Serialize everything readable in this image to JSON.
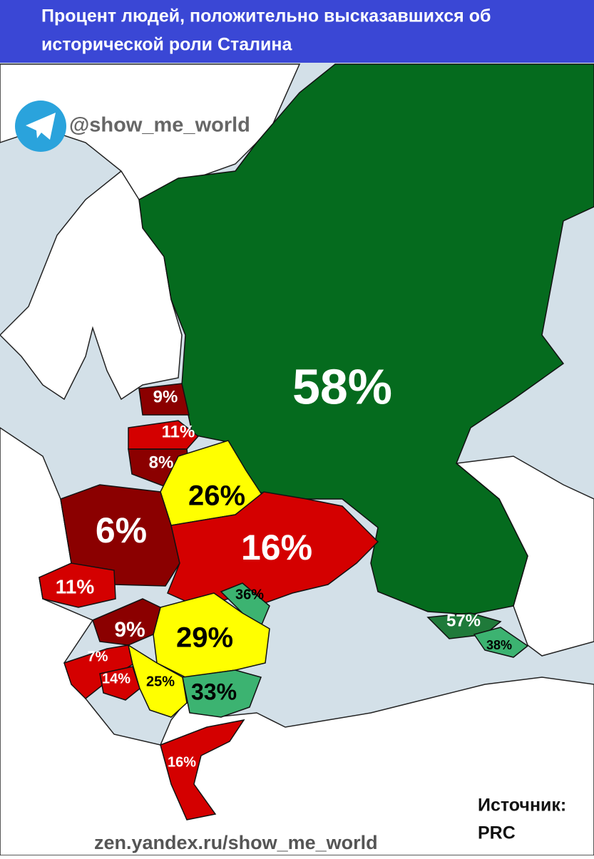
{
  "header": {
    "title_lines": [
      "Процент людей, положительно высказавшихся об",
      "исторической роли Сталина"
    ]
  },
  "handle": "@show_me_world",
  "regions": [
    {
      "label": "58%",
      "color": "#056b1e"
    },
    {
      "label": "9%",
      "color": "#8b0000"
    },
    {
      "label": "11%",
      "color": "#d40000"
    },
    {
      "label": "8%",
      "color": "#8b0000"
    },
    {
      "label": "26%",
      "color": "#ffff00"
    },
    {
      "label": "6%",
      "color": "#8b0000"
    },
    {
      "label": "16%",
      "color": "#d40000"
    },
    {
      "label": "11%",
      "color": "#d40000"
    },
    {
      "label": "36%",
      "color": "#3cb371"
    },
    {
      "label": "29%",
      "color": "#ffff00"
    },
    {
      "label": "9%",
      "color": "#8b0000"
    },
    {
      "label": "7%",
      "color": "#d40000"
    },
    {
      "label": "14%",
      "color": "#d40000"
    },
    {
      "label": "25%",
      "color": "#ffff00"
    },
    {
      "label": "33%",
      "color": "#3cb371"
    },
    {
      "label": "16%",
      "color": "#d40000"
    },
    {
      "label": "57%",
      "color": "#1f7a3a"
    },
    {
      "label": "38%",
      "color": "#3cb371"
    }
  ],
  "footer": {
    "url": "zen.yandex.ru/show_me_world",
    "source_label": "Источник:",
    "source": "PRC"
  }
}
